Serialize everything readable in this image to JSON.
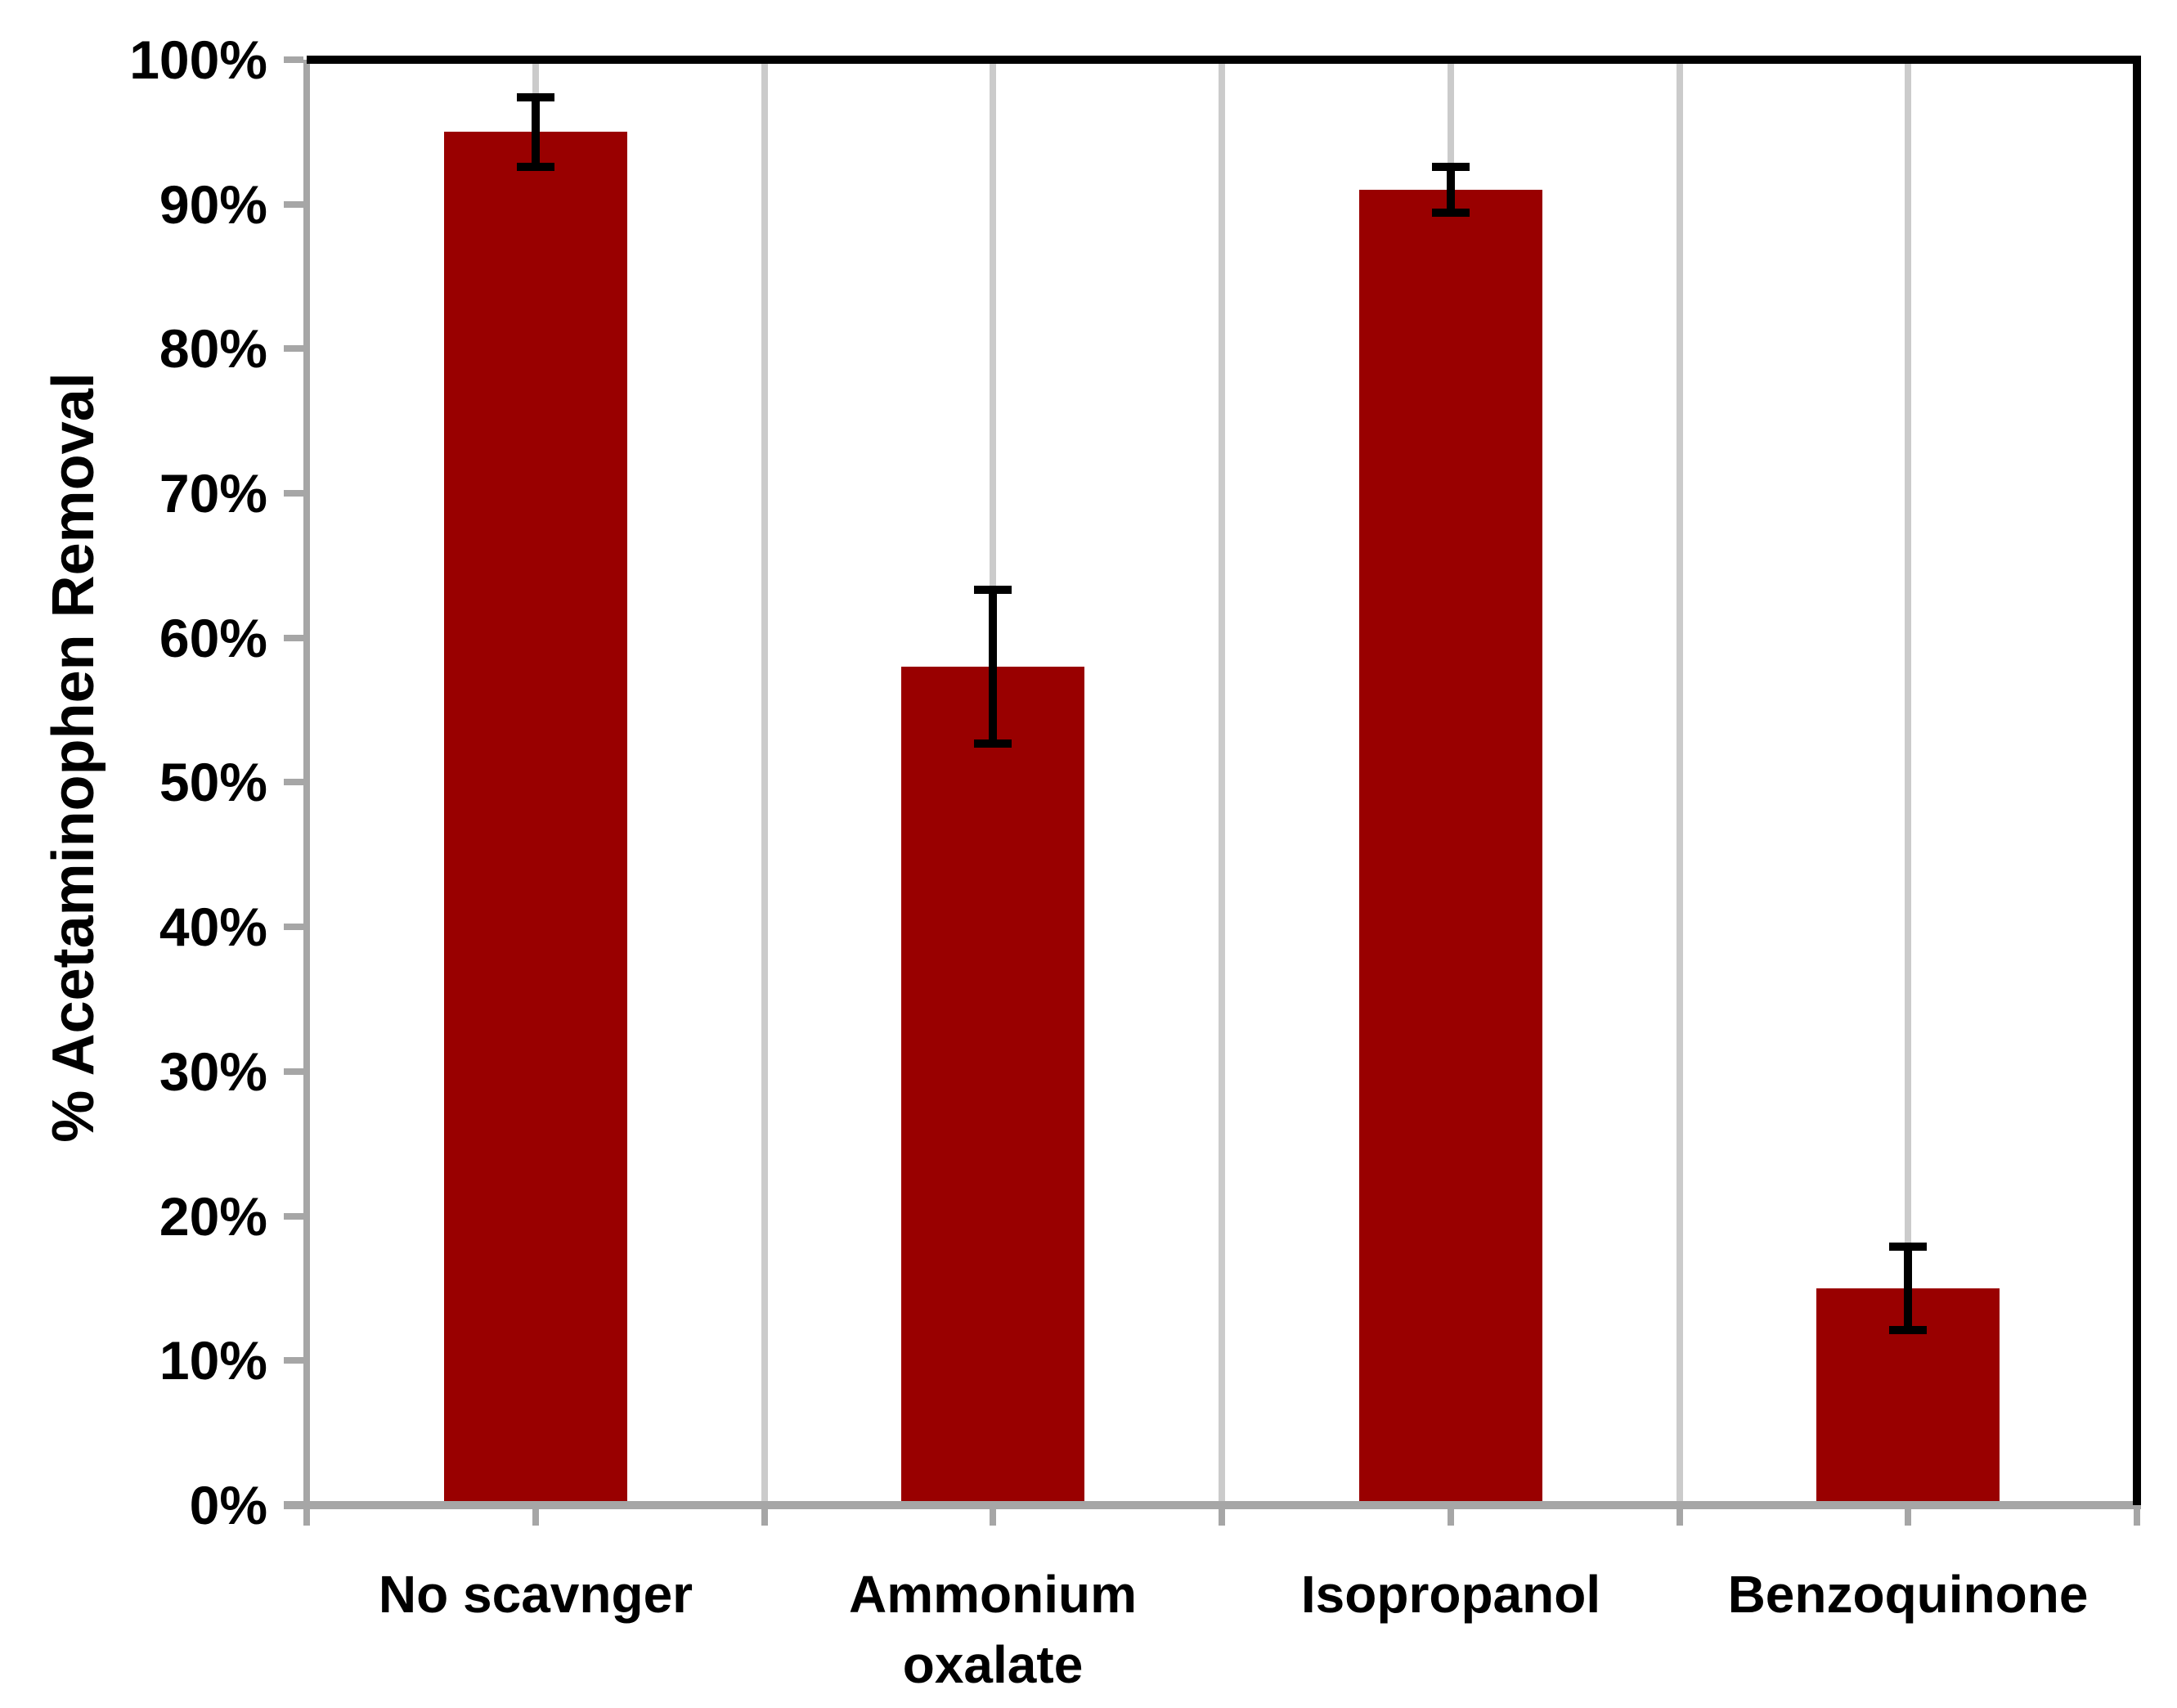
{
  "chart_data": {
    "type": "bar",
    "title": "",
    "xlabel": "",
    "ylabel": "% Acetaminophen Removal",
    "categories": [
      "No scavnger",
      "Ammonium oxalate",
      "Isopropanol",
      "Benzoquinone"
    ],
    "series": [
      {
        "name": "% Acetaminophen Removal",
        "values_percent": [
          95,
          58,
          91,
          15
        ],
        "error_plus_percent": [
          2.4,
          5.3,
          1.6,
          2.9
        ],
        "error_minus_percent": [
          2.4,
          5.3,
          1.6,
          2.9
        ]
      }
    ],
    "ylim_percent": [
      0,
      100
    ],
    "ytick_step_percent": 10,
    "ytick_labels": [
      "0%",
      "10%",
      "20%",
      "30%",
      "40%",
      "50%",
      "60%",
      "70%",
      "80%",
      "90%",
      "100%"
    ],
    "legend": "none",
    "grid": {
      "horizontal": false,
      "vertical": true,
      "vertical_positions": "every half category"
    },
    "colors": {
      "bar": "#990000",
      "error_bar": "#000000",
      "gridline": "#cbcbcb",
      "axis": "#a6a6a6",
      "top_border": "#000000",
      "right_border": "#000000",
      "text": "#000000",
      "background": "#ffffff"
    }
  }
}
